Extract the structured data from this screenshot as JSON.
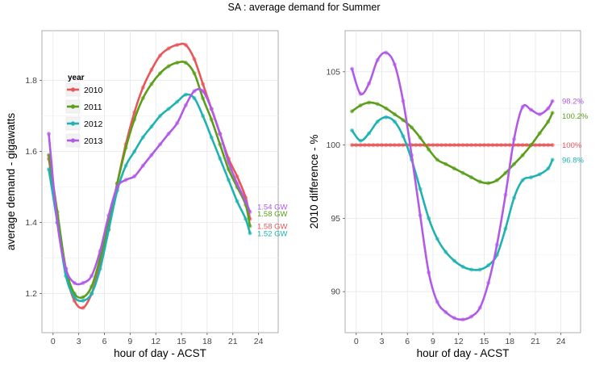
{
  "title": "SA : average demand for Summer",
  "colors": {
    "2010": "#e8565a",
    "2011": "#5a9e1a",
    "2012": "#1fb2b2",
    "2013": "#b15ae8"
  },
  "chart_data": [
    {
      "type": "line",
      "panel": "left",
      "xlabel": "hour of day - ACST",
      "ylabel": "average demand - gigawatts",
      "xlim": [
        -1.3,
        26.3
      ],
      "ylim": [
        1.09,
        1.94
      ],
      "xticks": [
        "0",
        "3",
        "6",
        "9",
        "12",
        "15",
        "18",
        "21",
        "24"
      ],
      "yticks": [
        "1.2",
        "1.4",
        "1.6",
        "1.8"
      ],
      "grid": true,
      "legend": {
        "title": "year",
        "placement": "top-left",
        "entries": [
          "2010",
          "2011",
          "2012",
          "2013"
        ]
      },
      "series": [
        {
          "name": "2010",
          "x": [
            -0.5,
            0.5,
            1.5,
            2.5,
            3.5,
            4.5,
            5.5,
            6.5,
            7.5,
            8.5,
            9.5,
            10.5,
            11.5,
            12.5,
            13.5,
            14.5,
            15.5,
            16.5,
            17.5,
            18.5,
            19.5,
            20.5,
            21.5,
            22.5,
            23
          ],
          "y": [
            1.58,
            1.42,
            1.26,
            1.18,
            1.16,
            1.2,
            1.28,
            1.38,
            1.51,
            1.62,
            1.71,
            1.78,
            1.83,
            1.87,
            1.89,
            1.9,
            1.9,
            1.86,
            1.79,
            1.72,
            1.65,
            1.58,
            1.53,
            1.47,
            1.41
          ]
        },
        {
          "name": "2011",
          "x": [
            -0.5,
            0.5,
            1.5,
            2.5,
            3.5,
            4.5,
            5.5,
            6.5,
            7.5,
            8.5,
            9.5,
            10.5,
            11.5,
            12.5,
            13.5,
            14.5,
            15.5,
            16.5,
            17.5,
            18.5,
            19.5,
            20.5,
            21.5,
            22.5,
            23
          ],
          "y": [
            1.59,
            1.43,
            1.27,
            1.2,
            1.19,
            1.22,
            1.3,
            1.4,
            1.51,
            1.61,
            1.69,
            1.75,
            1.79,
            1.82,
            1.84,
            1.85,
            1.85,
            1.82,
            1.75,
            1.69,
            1.62,
            1.55,
            1.5,
            1.45,
            1.39
          ]
        },
        {
          "name": "2012",
          "x": [
            -0.5,
            0.5,
            1.5,
            2.5,
            3.5,
            4.5,
            5.5,
            6.5,
            7.5,
            8.5,
            9.5,
            10.5,
            11.5,
            12.5,
            13.5,
            14.5,
            15.5,
            16.5,
            17.5,
            18.5,
            19.5,
            20.5,
            21.5,
            22.5,
            23
          ],
          "y": [
            1.55,
            1.4,
            1.25,
            1.19,
            1.18,
            1.2,
            1.27,
            1.38,
            1.49,
            1.56,
            1.6,
            1.64,
            1.67,
            1.7,
            1.72,
            1.74,
            1.76,
            1.75,
            1.7,
            1.64,
            1.58,
            1.52,
            1.46,
            1.41,
            1.37
          ]
        },
        {
          "name": "2013",
          "x": [
            -0.5,
            0.5,
            1.5,
            2.5,
            3.5,
            4.5,
            5.5,
            6.5,
            7.5,
            8.5,
            9.5,
            10.5,
            11.5,
            12.5,
            13.5,
            14.5,
            15.5,
            16.5,
            17.5,
            18.5,
            19.5,
            20.5,
            21.5,
            22.5,
            23
          ],
          "y": [
            1.65,
            1.4,
            1.27,
            1.23,
            1.23,
            1.25,
            1.32,
            1.42,
            1.5,
            1.52,
            1.53,
            1.56,
            1.59,
            1.62,
            1.65,
            1.68,
            1.73,
            1.77,
            1.77,
            1.72,
            1.65,
            1.57,
            1.51,
            1.46,
            1.43
          ]
        }
      ],
      "end_labels": [
        {
          "series": "2013",
          "text": "1.54 GW",
          "y": 1.445
        },
        {
          "series": "2011",
          "text": "1.58 GW",
          "y": 1.425
        },
        {
          "series": "2010",
          "text": "1.58 GW",
          "y": 1.39
        },
        {
          "series": "2012",
          "text": "1.52 GW",
          "y": 1.37
        }
      ]
    },
    {
      "type": "line",
      "panel": "right",
      "xlabel": "hour of day - ACST",
      "ylabel": "2010 difference - %",
      "xlim": [
        -1.3,
        26.3
      ],
      "ylim": [
        87.2,
        107.8
      ],
      "xticks": [
        "0",
        "3",
        "6",
        "9",
        "12",
        "15",
        "18",
        "21",
        "24"
      ],
      "yticks": [
        "90",
        "95",
        "100",
        "105"
      ],
      "grid": true,
      "series": [
        {
          "name": "2010",
          "x": [
            -0.5,
            23
          ],
          "y": [
            100,
            100
          ]
        },
        {
          "name": "2011",
          "x": [
            -0.5,
            0.5,
            1.5,
            2.5,
            3.5,
            4.5,
            5.5,
            6.5,
            7.5,
            8.5,
            9.5,
            10.5,
            11.5,
            12.5,
            13.5,
            14.5,
            15.5,
            16.5,
            17.5,
            18.5,
            19.5,
            20.5,
            21.5,
            22.5,
            23
          ],
          "y": [
            102.3,
            102.7,
            102.9,
            102.8,
            102.5,
            102.1,
            101.7,
            101.2,
            100.5,
            99.7,
            99.0,
            98.7,
            98.4,
            98.1,
            97.8,
            97.5,
            97.4,
            97.6,
            98.1,
            98.7,
            99.3,
            100.0,
            100.8,
            101.6,
            102.2
          ]
        },
        {
          "name": "2012",
          "x": [
            -0.5,
            0.5,
            1.5,
            2.5,
            3.5,
            4.5,
            5.5,
            6.5,
            7.5,
            8.5,
            9.5,
            10.5,
            11.5,
            12.5,
            13.5,
            14.5,
            15.5,
            16.5,
            17.5,
            18.5,
            19.5,
            20.5,
            21.5,
            22.5,
            23
          ],
          "y": [
            101.0,
            100.3,
            100.8,
            101.6,
            101.9,
            101.6,
            100.6,
            99.0,
            97.0,
            95.0,
            93.6,
            92.7,
            92.1,
            91.7,
            91.5,
            91.5,
            91.8,
            92.5,
            94.3,
            96.4,
            97.6,
            97.8,
            98.0,
            98.4,
            99.0
          ]
        },
        {
          "name": "2013",
          "x": [
            -0.5,
            0.5,
            1.5,
            2.5,
            3.5,
            4.5,
            5.5,
            6.5,
            7.5,
            8.5,
            9.5,
            10.5,
            11.5,
            12.5,
            13.5,
            14.5,
            15.5,
            16.5,
            17.5,
            18.5,
            19.5,
            20.5,
            21.5,
            22.5,
            23
          ],
          "y": [
            105.2,
            103.5,
            104.2,
            105.8,
            106.3,
            105.5,
            103.0,
            99.3,
            95.2,
            91.3,
            89.3,
            88.6,
            88.2,
            88.1,
            88.3,
            88.9,
            90.6,
            93.2,
            96.6,
            100.4,
            102.6,
            102.4,
            102.1,
            102.5,
            103.0
          ]
        }
      ],
      "end_labels": [
        {
          "series": "2013",
          "text": "98.2%",
          "y": 103.0
        },
        {
          "series": "2011",
          "text": "100.2%",
          "y": 102.0
        },
        {
          "series": "2010",
          "text": "100%",
          "y": 100.0
        },
        {
          "series": "2012",
          "text": "96.8%",
          "y": 99.0
        }
      ]
    }
  ]
}
